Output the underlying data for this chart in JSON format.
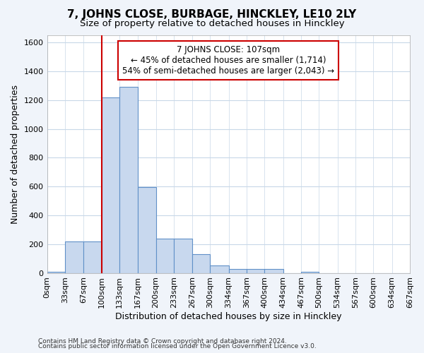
{
  "title": "7, JOHNS CLOSE, BURBAGE, HINCKLEY, LE10 2LY",
  "subtitle": "Size of property relative to detached houses in Hinckley",
  "xlabel": "Distribution of detached houses by size in Hinckley",
  "ylabel": "Number of detached properties",
  "footnote1": "Contains HM Land Registry data © Crown copyright and database right 2024.",
  "footnote2": "Contains public sector information licensed under the Open Government Licence v3.0.",
  "annotation_line1": "7 JOHNS CLOSE: 107sqm",
  "annotation_line2": "← 45% of detached houses are smaller (1,714)",
  "annotation_line3": "54% of semi-detached houses are larger (2,043) →",
  "bar_edges": [
    0,
    33,
    67,
    100,
    133,
    167,
    200,
    233,
    267,
    300,
    334,
    367,
    400,
    434,
    467,
    500,
    534,
    567,
    600,
    634,
    667
  ],
  "bar_heights": [
    10,
    218,
    220,
    1220,
    1290,
    595,
    240,
    240,
    130,
    50,
    28,
    28,
    25,
    0,
    8,
    0,
    0,
    0,
    0,
    0
  ],
  "bar_color": "#c8d8ee",
  "bar_edge_color": "#6090c8",
  "vline_color": "#cc0000",
  "vline_x": 100,
  "annotation_box_color": "#cc0000",
  "ylim": [
    0,
    1650
  ],
  "yticks": [
    0,
    200,
    400,
    600,
    800,
    1000,
    1200,
    1400,
    1600
  ],
  "grid_color": "#c8d8e8",
  "plot_bg_color": "#ffffff",
  "fig_bg_color": "#f0f4fa",
  "title_fontsize": 11,
  "subtitle_fontsize": 9.5,
  "tick_label_fontsize": 8,
  "ylabel_fontsize": 9,
  "xlabel_fontsize": 9,
  "footnote_fontsize": 6.5
}
